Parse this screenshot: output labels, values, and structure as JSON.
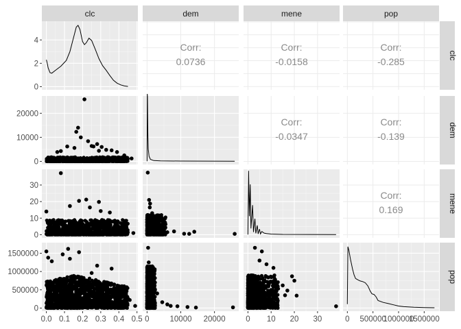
{
  "chart_data": {
    "type": "scatter",
    "subtype": "pairs-plot-matrix",
    "variables": [
      "clc",
      "dem",
      "mene",
      "pop"
    ],
    "grid": true,
    "point_color": "#000000",
    "panel_background": "#ebebeb",
    "strip_background": "#d9d9d9",
    "x_ticks": {
      "clc": [
        "0.0",
        "0.1",
        "0.2",
        "0.3",
        "0.4",
        "0.5"
      ],
      "dem": [
        "0",
        "10000",
        "20000"
      ],
      "mene": [
        "0",
        "10",
        "20",
        "30"
      ],
      "pop": [
        "0",
        "500000",
        "1000000",
        "1500000"
      ]
    },
    "x_tick_values": {
      "clc": [
        0,
        0.1,
        0.2,
        0.3,
        0.4,
        0.5
      ],
      "dem": [
        0,
        10000,
        20000
      ],
      "mene": [
        0,
        10,
        20,
        30
      ],
      "pop": [
        0,
        500000,
        1000000,
        1500000
      ]
    },
    "xlim": {
      "clc": [
        -0.025,
        0.505
      ],
      "dem": [
        -1300,
        27200
      ],
      "mene": [
        -1.9,
        39.5
      ],
      "pop": [
        -85000,
        1790000
      ]
    },
    "y_ticks": {
      "clc": [
        "0",
        "2",
        "4"
      ],
      "dem": [
        "0",
        "10000",
        "20000"
      ],
      "mene": [
        "0",
        "10",
        "20",
        "30"
      ],
      "pop": [
        "0",
        "500000",
        "1000000",
        "1500000"
      ]
    },
    "y_tick_values": {
      "clc": [
        0,
        2,
        4
      ],
      "dem": [
        0,
        10000,
        20000
      ],
      "mene": [
        0,
        10,
        20,
        30
      ],
      "pop": [
        0,
        500000,
        1000000,
        1500000
      ]
    },
    "ylim": {
      "clc": [
        -0.27,
        5.6
      ],
      "dem": [
        -1300,
        27200
      ],
      "mene": [
        -1.9,
        39.5
      ],
      "pop": [
        -85000,
        1790000
      ]
    },
    "correlations": [
      {
        "row": "clc",
        "col": "dem",
        "label": "Corr:",
        "value": "0.0736"
      },
      {
        "row": "clc",
        "col": "mene",
        "label": "Corr:",
        "value": "-0.0158"
      },
      {
        "row": "clc",
        "col": "pop",
        "label": "Corr:",
        "value": "-0.285"
      },
      {
        "row": "dem",
        "col": "mene",
        "label": "Corr:",
        "value": "-0.0347"
      },
      {
        "row": "dem",
        "col": "pop",
        "label": "Corr:",
        "value": "-0.139"
      },
      {
        "row": "mene",
        "col": "pop",
        "label": "Corr:",
        "value": "0.169"
      }
    ],
    "densities": {
      "clc": [
        [
          0,
          2.3
        ],
        [
          0.005,
          2.0
        ],
        [
          0.01,
          1.6
        ],
        [
          0.02,
          1.2
        ],
        [
          0.03,
          1.15
        ],
        [
          0.05,
          1.4
        ],
        [
          0.08,
          1.75
        ],
        [
          0.11,
          2.25
        ],
        [
          0.13,
          3.0
        ],
        [
          0.15,
          4.2
        ],
        [
          0.165,
          5.1
        ],
        [
          0.175,
          5.25
        ],
        [
          0.185,
          4.9
        ],
        [
          0.2,
          3.85
        ],
        [
          0.21,
          3.6
        ],
        [
          0.22,
          3.75
        ],
        [
          0.235,
          4.15
        ],
        [
          0.25,
          3.95
        ],
        [
          0.27,
          3.2
        ],
        [
          0.29,
          2.4
        ],
        [
          0.31,
          1.8
        ],
        [
          0.33,
          1.4
        ],
        [
          0.35,
          0.95
        ],
        [
          0.37,
          0.55
        ],
        [
          0.39,
          0.3
        ],
        [
          0.41,
          0.15
        ],
        [
          0.43,
          0.06
        ],
        [
          0.45,
          0.02
        ]
      ],
      "dem": [
        [
          0,
          0
        ],
        [
          60,
          5.5
        ],
        [
          120,
          5.3
        ],
        [
          220,
          2.4
        ],
        [
          350,
          1.0
        ],
        [
          600,
          0.4
        ],
        [
          1000,
          0.15
        ],
        [
          2000,
          0.05
        ],
        [
          4000,
          0.02
        ],
        [
          10000,
          0.01
        ],
        [
          26000,
          0
        ]
      ],
      "mene": [
        [
          0,
          0
        ],
        [
          0.3,
          5.2
        ],
        [
          0.6,
          1.5
        ],
        [
          1.0,
          4.1
        ],
        [
          1.3,
          0.5
        ],
        [
          2.0,
          2.4
        ],
        [
          2.4,
          0.2
        ],
        [
          3.0,
          1.3
        ],
        [
          3.4,
          0.1
        ],
        [
          4.0,
          0.75
        ],
        [
          4.4,
          0.05
        ],
        [
          5.0,
          0.45
        ],
        [
          5.4,
          0.05
        ],
        [
          6.0,
          0.25
        ],
        [
          7.0,
          0.12
        ],
        [
          8.0,
          0.08
        ],
        [
          10,
          0.04
        ],
        [
          15,
          0.01
        ],
        [
          38,
          0
        ]
      ],
      "pop": [
        [
          0,
          0.3
        ],
        [
          10000,
          5.0
        ],
        [
          30000,
          4.7
        ],
        [
          60000,
          4.0
        ],
        [
          100000,
          3.2
        ],
        [
          130000,
          2.7
        ],
        [
          160000,
          2.4
        ],
        [
          200000,
          2.3
        ],
        [
          250000,
          2.2
        ],
        [
          300000,
          2.15
        ],
        [
          350000,
          2.05
        ],
        [
          400000,
          1.8
        ],
        [
          450000,
          1.35
        ],
        [
          480000,
          1.15
        ],
        [
          520000,
          1.1
        ],
        [
          560000,
          0.9
        ],
        [
          600000,
          0.6
        ],
        [
          700000,
          0.45
        ],
        [
          800000,
          0.35
        ],
        [
          900000,
          0.25
        ],
        [
          1000000,
          0.15
        ],
        [
          1100000,
          0.1
        ],
        [
          1300000,
          0.05
        ],
        [
          1500000,
          0.02
        ],
        [
          1700000,
          0.01
        ]
      ]
    },
    "scatter_points": {
      "dem_vs_clc": [
        [
          0.47,
          1200
        ],
        [
          0.21,
          25800
        ],
        [
          0.175,
          14000
        ],
        [
          0.165,
          12300
        ],
        [
          0.19,
          10000
        ],
        [
          0.23,
          8400
        ],
        [
          0.25,
          6400
        ],
        [
          0.26,
          6200
        ],
        [
          0.28,
          7200
        ],
        [
          0.305,
          6000
        ],
        [
          0.115,
          6200
        ],
        [
          0.155,
          5600
        ],
        [
          0.33,
          4800
        ],
        [
          0.36,
          4600
        ],
        [
          0.39,
          3900
        ],
        [
          0.43,
          2500
        ],
        [
          0.06,
          3900
        ],
        [
          0.08,
          4300
        ],
        [
          0.29,
          4400
        ]
      ],
      "mene_vs_clc": [
        [
          0.08,
          37.2
        ],
        [
          0.0,
          14
        ],
        [
          0.18,
          20.4
        ],
        [
          0.22,
          21.2
        ],
        [
          0.29,
          19.8
        ],
        [
          0.13,
          17.3
        ],
        [
          0.24,
          16.5
        ],
        [
          0.3,
          14.3
        ],
        [
          0.35,
          13.4
        ],
        [
          0.48,
          1
        ],
        [
          0.43,
          2
        ]
      ],
      "pop_vs_clc": [
        [
          0.0,
          1550000
        ],
        [
          0.09,
          1470000
        ],
        [
          0.12,
          1620000
        ],
        [
          0.18,
          1530000
        ],
        [
          0.13,
          1350000
        ],
        [
          0.28,
          1160000
        ],
        [
          0.36,
          1080000
        ],
        [
          0.46,
          220000
        ],
        [
          0.49,
          60000
        ],
        [
          0.33,
          700000
        ],
        [
          0.4,
          530000
        ],
        [
          0.41,
          330000
        ],
        [
          0.25,
          960000
        ],
        [
          0.03,
          1280000
        ],
        [
          0.01,
          1380000
        ]
      ],
      "mene_vs_dem": [
        [
          200,
          37.5
        ],
        [
          600,
          21
        ],
        [
          900,
          18.8
        ],
        [
          2000,
          11
        ],
        [
          3500,
          7
        ],
        [
          5000,
          3.8
        ],
        [
          6000,
          1.5
        ],
        [
          8000,
          2
        ],
        [
          11000,
          0.6
        ],
        [
          12500,
          0.5
        ],
        [
          14000,
          1.8
        ],
        [
          26000,
          0.5
        ],
        [
          1500,
          13
        ],
        [
          800,
          16.5
        ]
      ],
      "pop_vs_dem": [
        [
          300,
          1650000
        ],
        [
          500,
          1250000
        ],
        [
          1000,
          900000
        ],
        [
          2000,
          650000
        ],
        [
          3000,
          400000
        ],
        [
          4500,
          160000
        ],
        [
          6000,
          100000
        ],
        [
          9000,
          50000
        ],
        [
          12000,
          30000
        ],
        [
          14500,
          15000
        ],
        [
          25500,
          20000
        ],
        [
          7000,
          60000
        ]
      ],
      "pop_vs_mene": [
        [
          3,
          1650000
        ],
        [
          6,
          1550000
        ],
        [
          5,
          1300000
        ],
        [
          8,
          1200000
        ],
        [
          11,
          1100000
        ],
        [
          12,
          720000
        ],
        [
          15,
          620000
        ],
        [
          17,
          480000
        ],
        [
          19,
          870000
        ],
        [
          20,
          750000
        ],
        [
          21,
          340000
        ],
        [
          38,
          50000
        ],
        [
          16,
          350000
        ],
        [
          13,
          530000
        ]
      ]
    },
    "scatter_clouds": {
      "dem_vs_clc": {
        "x": [
          0,
          0.45
        ],
        "y": [
          0,
          1800
        ],
        "count": 700,
        "mode": "flat"
      },
      "mene_vs_clc": {
        "x": [
          0,
          0.45
        ],
        "y": [
          0,
          9
        ],
        "count": 900,
        "mode": "flat"
      },
      "pop_vs_clc": {
        "x": [
          0,
          0.45
        ],
        "y": [
          0,
          900000
        ],
        "count": 1500,
        "mode": "tri"
      },
      "mene_vs_dem": {
        "x": [
          0,
          5500
        ],
        "y": [
          0,
          12
        ],
        "count": 500,
        "mode": "skew"
      },
      "pop_vs_dem": {
        "x": [
          0,
          2400
        ],
        "y": [
          0,
          1150000
        ],
        "count": 600,
        "mode": "skew"
      },
      "pop_vs_mene": {
        "x": [
          0,
          13
        ],
        "y": [
          0,
          900000
        ],
        "count": 800,
        "mode": "skew"
      }
    }
  }
}
